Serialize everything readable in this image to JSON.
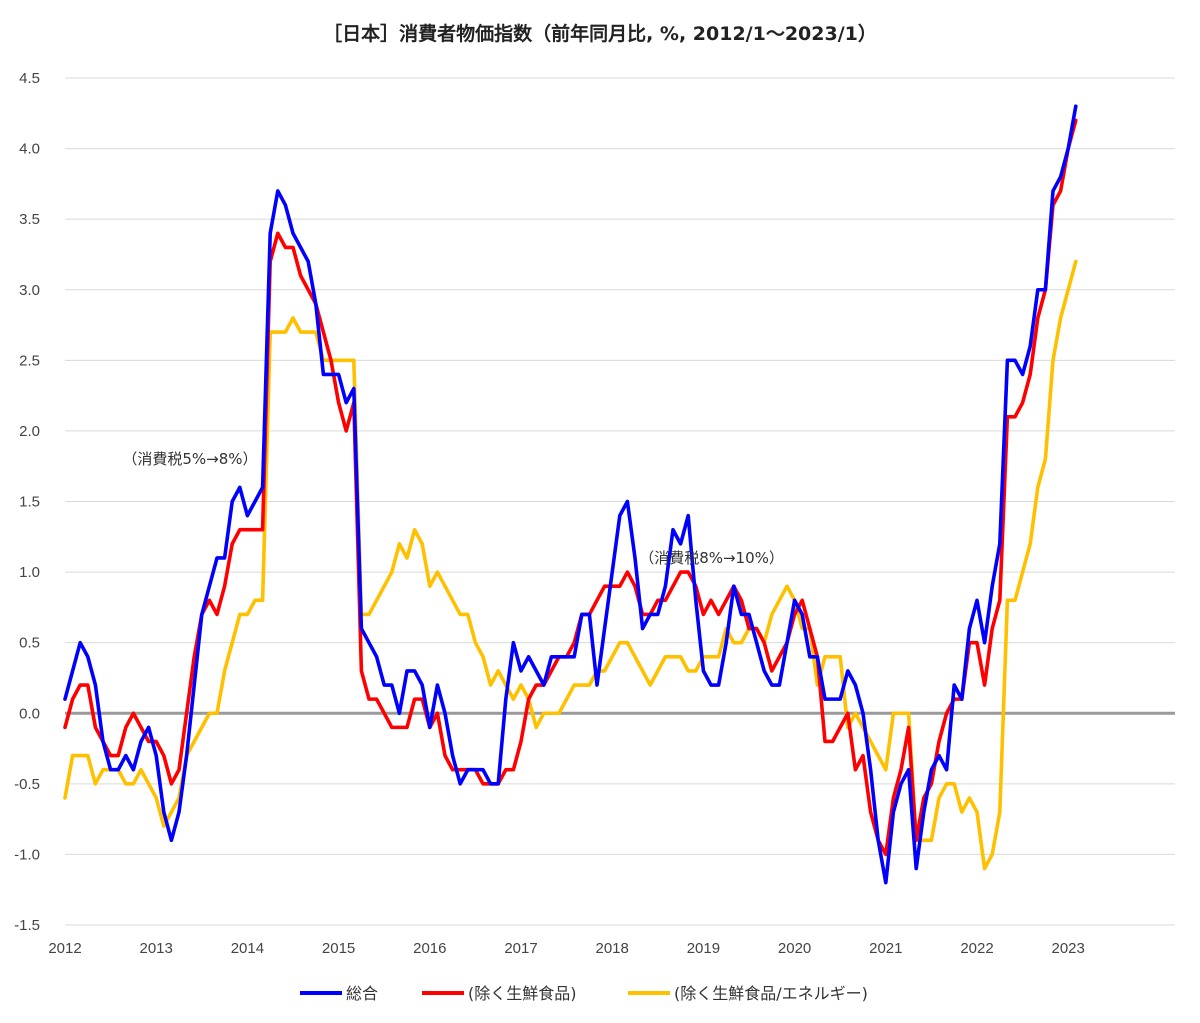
{
  "chart_data": {
    "type": "line",
    "title": "［日本］消費者物価指数（前年同月比, %, 2012/1～2023/1）",
    "ylim": [
      -1.5,
      4.5
    ],
    "yticks": [
      "4.5",
      "4.0",
      "3.5",
      "3.0",
      "2.5",
      "2.0",
      "1.5",
      "1.0",
      "0.5",
      "0.0",
      "-0.5",
      "-1.0",
      "-1.5"
    ],
    "xticks": [
      "2012",
      "2013",
      "2014",
      "2015",
      "2016",
      "2017",
      "2018",
      "2019",
      "2020",
      "2021",
      "2022",
      "2023"
    ],
    "grid": "horizontal",
    "legend_position": "bottom",
    "annotations": [
      {
        "text": "（消費税5%→8%）",
        "x": "2014-01",
        "y": 1.8
      },
      {
        "text": "（消費税8%→10%）",
        "x": "2019-09",
        "y": 1.1
      }
    ],
    "series": [
      {
        "name": "総合",
        "color": "#0000ff",
        "start": "2012-01",
        "values": [
          0.1,
          0.3,
          0.5,
          0.4,
          0.2,
          -0.2,
          -0.4,
          -0.4,
          -0.3,
          -0.4,
          -0.2,
          -0.1,
          -0.3,
          -0.7,
          -0.9,
          -0.7,
          -0.3,
          0.2,
          0.7,
          0.9,
          1.1,
          1.1,
          1.5,
          1.6,
          1.4,
          1.5,
          1.6,
          3.4,
          3.7,
          3.6,
          3.4,
          3.3,
          3.2,
          2.9,
          2.4,
          2.4,
          2.4,
          2.2,
          2.3,
          0.6,
          0.5,
          0.4,
          0.2,
          0.2,
          0.0,
          0.3,
          0.3,
          0.2,
          -0.1,
          0.2,
          0.0,
          -0.3,
          -0.5,
          -0.4,
          -0.4,
          -0.4,
          -0.5,
          -0.5,
          0.1,
          0.5,
          0.3,
          0.4,
          0.3,
          0.2,
          0.4,
          0.4,
          0.4,
          0.4,
          0.7,
          0.7,
          0.2,
          0.6,
          1.0,
          1.4,
          1.5,
          1.1,
          0.6,
          0.7,
          0.7,
          0.9,
          1.3,
          1.2,
          1.4,
          0.8,
          0.3,
          0.2,
          0.2,
          0.5,
          0.9,
          0.7,
          0.7,
          0.5,
          0.3,
          0.2,
          0.2,
          0.5,
          0.8,
          0.7,
          0.4,
          0.4,
          0.1,
          0.1,
          0.1,
          0.3,
          0.2,
          0.0,
          -0.4,
          -0.9,
          -1.2,
          -0.7,
          -0.5,
          -0.4,
          -1.1,
          -0.7,
          -0.4,
          -0.3,
          -0.4,
          0.2,
          0.1,
          0.6,
          0.8,
          0.5,
          0.9,
          1.2,
          2.5,
          2.5,
          2.4,
          2.6,
          3.0,
          3.0,
          3.7,
          3.8,
          4.0,
          4.3
        ]
      },
      {
        "name": "(除く生鮮食品)",
        "color": "#ff0000",
        "start": "2012-01",
        "values": [
          -0.1,
          0.1,
          0.2,
          0.2,
          -0.1,
          -0.2,
          -0.3,
          -0.3,
          -0.1,
          0.0,
          -0.1,
          -0.2,
          -0.2,
          -0.3,
          -0.5,
          -0.4,
          0.0,
          0.4,
          0.7,
          0.8,
          0.7,
          0.9,
          1.2,
          1.3,
          1.3,
          1.3,
          1.3,
          3.2,
          3.4,
          3.3,
          3.3,
          3.1,
          3.0,
          2.9,
          2.7,
          2.5,
          2.2,
          2.0,
          2.2,
          0.3,
          0.1,
          0.1,
          0.0,
          -0.1,
          -0.1,
          -0.1,
          0.1,
          0.1,
          -0.1,
          0.0,
          -0.3,
          -0.4,
          -0.4,
          -0.4,
          -0.4,
          -0.5,
          -0.5,
          -0.5,
          -0.4,
          -0.4,
          -0.2,
          0.1,
          0.2,
          0.2,
          0.3,
          0.4,
          0.4,
          0.5,
          0.7,
          0.7,
          0.8,
          0.9,
          0.9,
          0.9,
          1.0,
          0.9,
          0.7,
          0.7,
          0.8,
          0.8,
          0.9,
          1.0,
          1.0,
          0.9,
          0.7,
          0.8,
          0.7,
          0.8,
          0.9,
          0.8,
          0.6,
          0.6,
          0.5,
          0.3,
          0.4,
          0.5,
          0.7,
          0.8,
          0.6,
          0.4,
          -0.2,
          -0.2,
          -0.1,
          0.0,
          -0.4,
          -0.3,
          -0.7,
          -0.9,
          -1.0,
          -0.6,
          -0.4,
          -0.1,
          -0.9,
          -0.6,
          -0.5,
          -0.2,
          0.0,
          0.1,
          0.1,
          0.5,
          0.5,
          0.2,
          0.6,
          0.8,
          2.1,
          2.1,
          2.2,
          2.4,
          2.8,
          3.0,
          3.6,
          3.7,
          4.0,
          4.2
        ]
      },
      {
        "name": "(除く生鮮食品/エネルギー)",
        "color": "#ffc000",
        "start": "2012-01",
        "values": [
          -0.6,
          -0.3,
          -0.3,
          -0.3,
          -0.5,
          -0.4,
          -0.4,
          -0.4,
          -0.5,
          -0.5,
          -0.4,
          -0.5,
          -0.6,
          -0.8,
          -0.7,
          -0.6,
          -0.3,
          -0.2,
          -0.1,
          0.0,
          0.0,
          0.3,
          0.5,
          0.7,
          0.7,
          0.8,
          0.8,
          2.7,
          2.7,
          2.7,
          2.8,
          2.7,
          2.7,
          2.7,
          2.5,
          2.5,
          2.5,
          2.5,
          2.5,
          0.7,
          0.7,
          0.8,
          0.9,
          1.0,
          1.2,
          1.1,
          1.3,
          1.2,
          0.9,
          1.0,
          0.9,
          0.8,
          0.7,
          0.7,
          0.5,
          0.4,
          0.2,
          0.3,
          0.2,
          0.1,
          0.2,
          0.1,
          -0.1,
          0.0,
          0.0,
          0.0,
          0.1,
          0.2,
          0.2,
          0.2,
          0.3,
          0.3,
          0.4,
          0.5,
          0.5,
          0.4,
          0.3,
          0.2,
          0.3,
          0.4,
          0.4,
          0.4,
          0.3,
          0.3,
          0.4,
          0.4,
          0.4,
          0.6,
          0.5,
          0.5,
          0.6,
          0.6,
          0.5,
          0.7,
          0.8,
          0.9,
          0.8,
          0.6,
          0.6,
          0.2,
          0.4,
          0.4,
          0.4,
          -0.1,
          0.0,
          -0.1,
          -0.2,
          -0.3,
          -0.4,
          0.0,
          0.0,
          0.0,
          -0.9,
          -0.9,
          -0.9,
          -0.6,
          -0.5,
          -0.5,
          -0.7,
          -0.6,
          -0.7,
          -1.1,
          -1.0,
          -0.7,
          0.8,
          0.8,
          1.0,
          1.2,
          1.6,
          1.8,
          2.5,
          2.8,
          3.0,
          3.2
        ]
      }
    ]
  }
}
